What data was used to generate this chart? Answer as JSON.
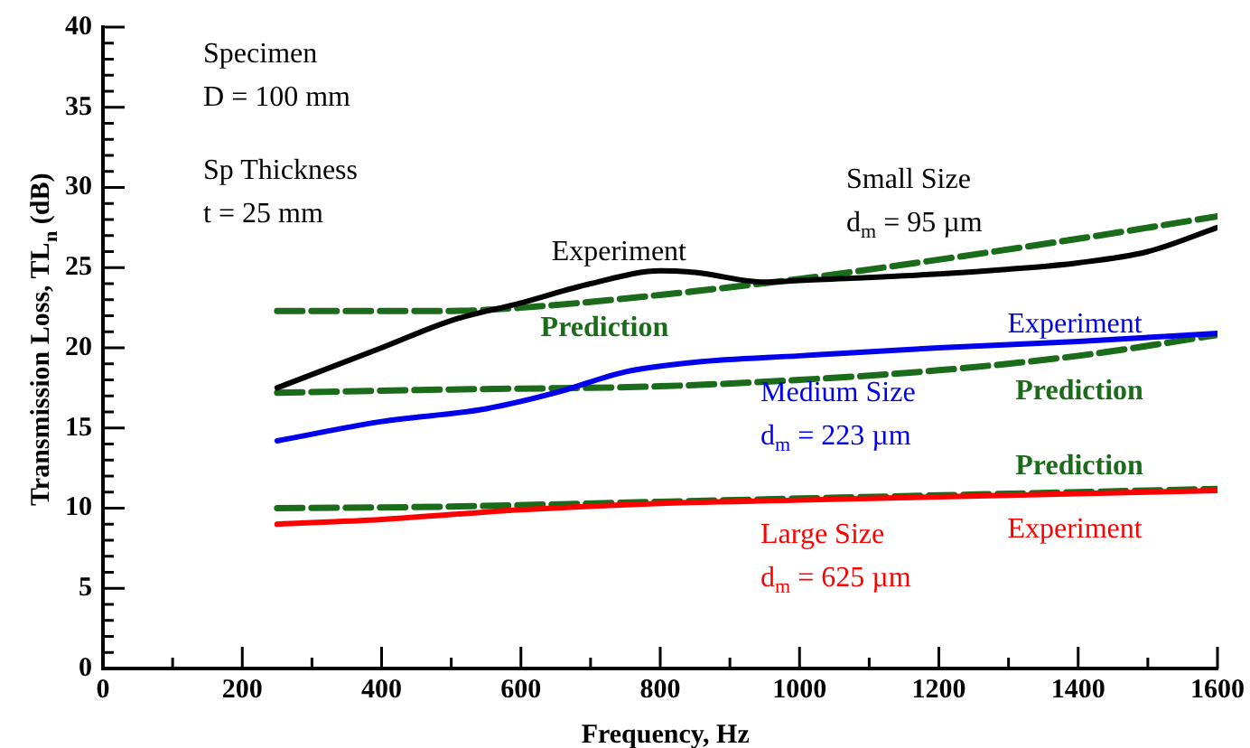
{
  "chart_data": {
    "type": "line",
    "xlabel": "Frequency, Hz",
    "ylabel": "Transmission Loss, TL$_{n}$ (dB)",
    "xlim": [
      0,
      1600
    ],
    "ylim": [
      0,
      40
    ],
    "xticks": [
      0,
      {
        "value": 100,
        "label": null
      },
      200,
      {
        "value": 300,
        "label": null
      },
      400,
      {
        "value": 500,
        "label": null
      },
      600,
      {
        "value": 700,
        "label": null
      },
      800,
      {
        "value": 900,
        "label": null
      },
      1000,
      {
        "value": 1100,
        "label": null
      },
      1200,
      {
        "value": 1300,
        "label": null
      },
      1400,
      {
        "value": 1500,
        "label": null
      },
      1600
    ],
    "yticks": [
      0,
      {
        "value": 1,
        "label": null
      },
      {
        "value": 2,
        "label": null
      },
      {
        "value": 3,
        "label": null
      },
      {
        "value": 4,
        "label": null
      },
      5,
      {
        "value": 6,
        "label": null
      },
      {
        "value": 7,
        "label": null
      },
      {
        "value": 8,
        "label": null
      },
      {
        "value": 9,
        "label": null
      },
      10,
      {
        "value": 11,
        "label": null
      },
      {
        "value": 12,
        "label": null
      },
      {
        "value": 13,
        "label": null
      },
      {
        "value": 14,
        "label": null
      },
      15,
      {
        "value": 16,
        "label": null
      },
      {
        "value": 17,
        "label": null
      },
      {
        "value": 18,
        "label": null
      },
      {
        "value": 19,
        "label": null
      },
      20,
      {
        "value": 21,
        "label": null
      },
      {
        "value": 22,
        "label": null
      },
      {
        "value": 23,
        "label": null
      },
      {
        "value": 24,
        "label": null
      },
      25,
      {
        "value": 26,
        "label": null
      },
      {
        "value": 27,
        "label": null
      },
      {
        "value": 28,
        "label": null
      },
      {
        "value": 29,
        "label": null
      },
      30,
      {
        "value": 31,
        "label": null
      },
      {
        "value": 32,
        "label": null
      },
      {
        "value": 33,
        "label": null
      },
      {
        "value": 34,
        "label": null
      },
      35,
      {
        "value": 36,
        "label": null
      },
      {
        "value": 37,
        "label": null
      },
      {
        "value": 38,
        "label": null
      },
      {
        "value": 39,
        "label": null
      },
      40
    ],
    "grid": false,
    "legend": false,
    "marker": "none",
    "series": [
      {
        "name": "Experiment",
        "color": "#000000",
        "line_style": "solid",
        "x": [
          250,
          400,
          500,
          600,
          700,
          800,
          850,
          950,
          1000,
          1200,
          1300,
          1400,
          1500,
          1600
        ],
        "values": [
          17.5,
          20,
          21.7,
          22.8,
          24,
          24.8,
          24.7,
          24.1,
          24.2,
          24.6,
          24.9,
          25.3,
          26,
          27.5
        ]
      },
      {
        "name": "Prediction",
        "color": "#1a6b1a",
        "line_style": "dashed",
        "x": [
          250,
          500,
          600,
          800,
          1000,
          1200,
          1400,
          1600
        ],
        "values": [
          22.3,
          22.3,
          22.5,
          23.3,
          24.3,
          25.5,
          26.8,
          28.2
        ]
      },
      {
        "name": "Experiment",
        "color": "#0000ee",
        "line_style": "solid",
        "x": [
          250,
          400,
          550,
          650,
          750,
          850,
          1000,
          1200,
          1400,
          1600
        ],
        "values": [
          14.2,
          15.4,
          16.2,
          17.2,
          18.5,
          19.1,
          19.5,
          20,
          20.4,
          20.9
        ]
      },
      {
        "name": "Prediction",
        "color": "#1a6b1a",
        "line_style": "dashed",
        "x": [
          250,
          500,
          800,
          1000,
          1200,
          1400,
          1600
        ],
        "values": [
          17.2,
          17.4,
          17.6,
          18,
          18.6,
          19.5,
          20.8
        ]
      },
      {
        "name": "Experiment",
        "color": "#ff0000",
        "line_style": "solid",
        "x": [
          250,
          400,
          600,
          800,
          1000,
          1200,
          1400,
          1600
        ],
        "values": [
          9,
          9.3,
          9.9,
          10.3,
          10.5,
          10.7,
          10.9,
          11.1
        ]
      },
      {
        "name": "Prediction",
        "color": "#1a6b1a",
        "line_style": "dashed",
        "x": [
          250,
          500,
          800,
          1000,
          1200,
          1400,
          1600
        ],
        "values": [
          10,
          10.1,
          10.4,
          10.6,
          10.8,
          11,
          11.2
        ]
      }
    ],
    "annotations": [
      "Specimen\nD = 100 mm",
      "Sp Thickness\nt = 25 mm",
      "Small Size\nd$_{m}$ = 95 µm",
      "Medium Size\nd$_{m}$ = 223 µm",
      "Large Size\nd$_{m}$ = 625 µm"
    ]
  }
}
